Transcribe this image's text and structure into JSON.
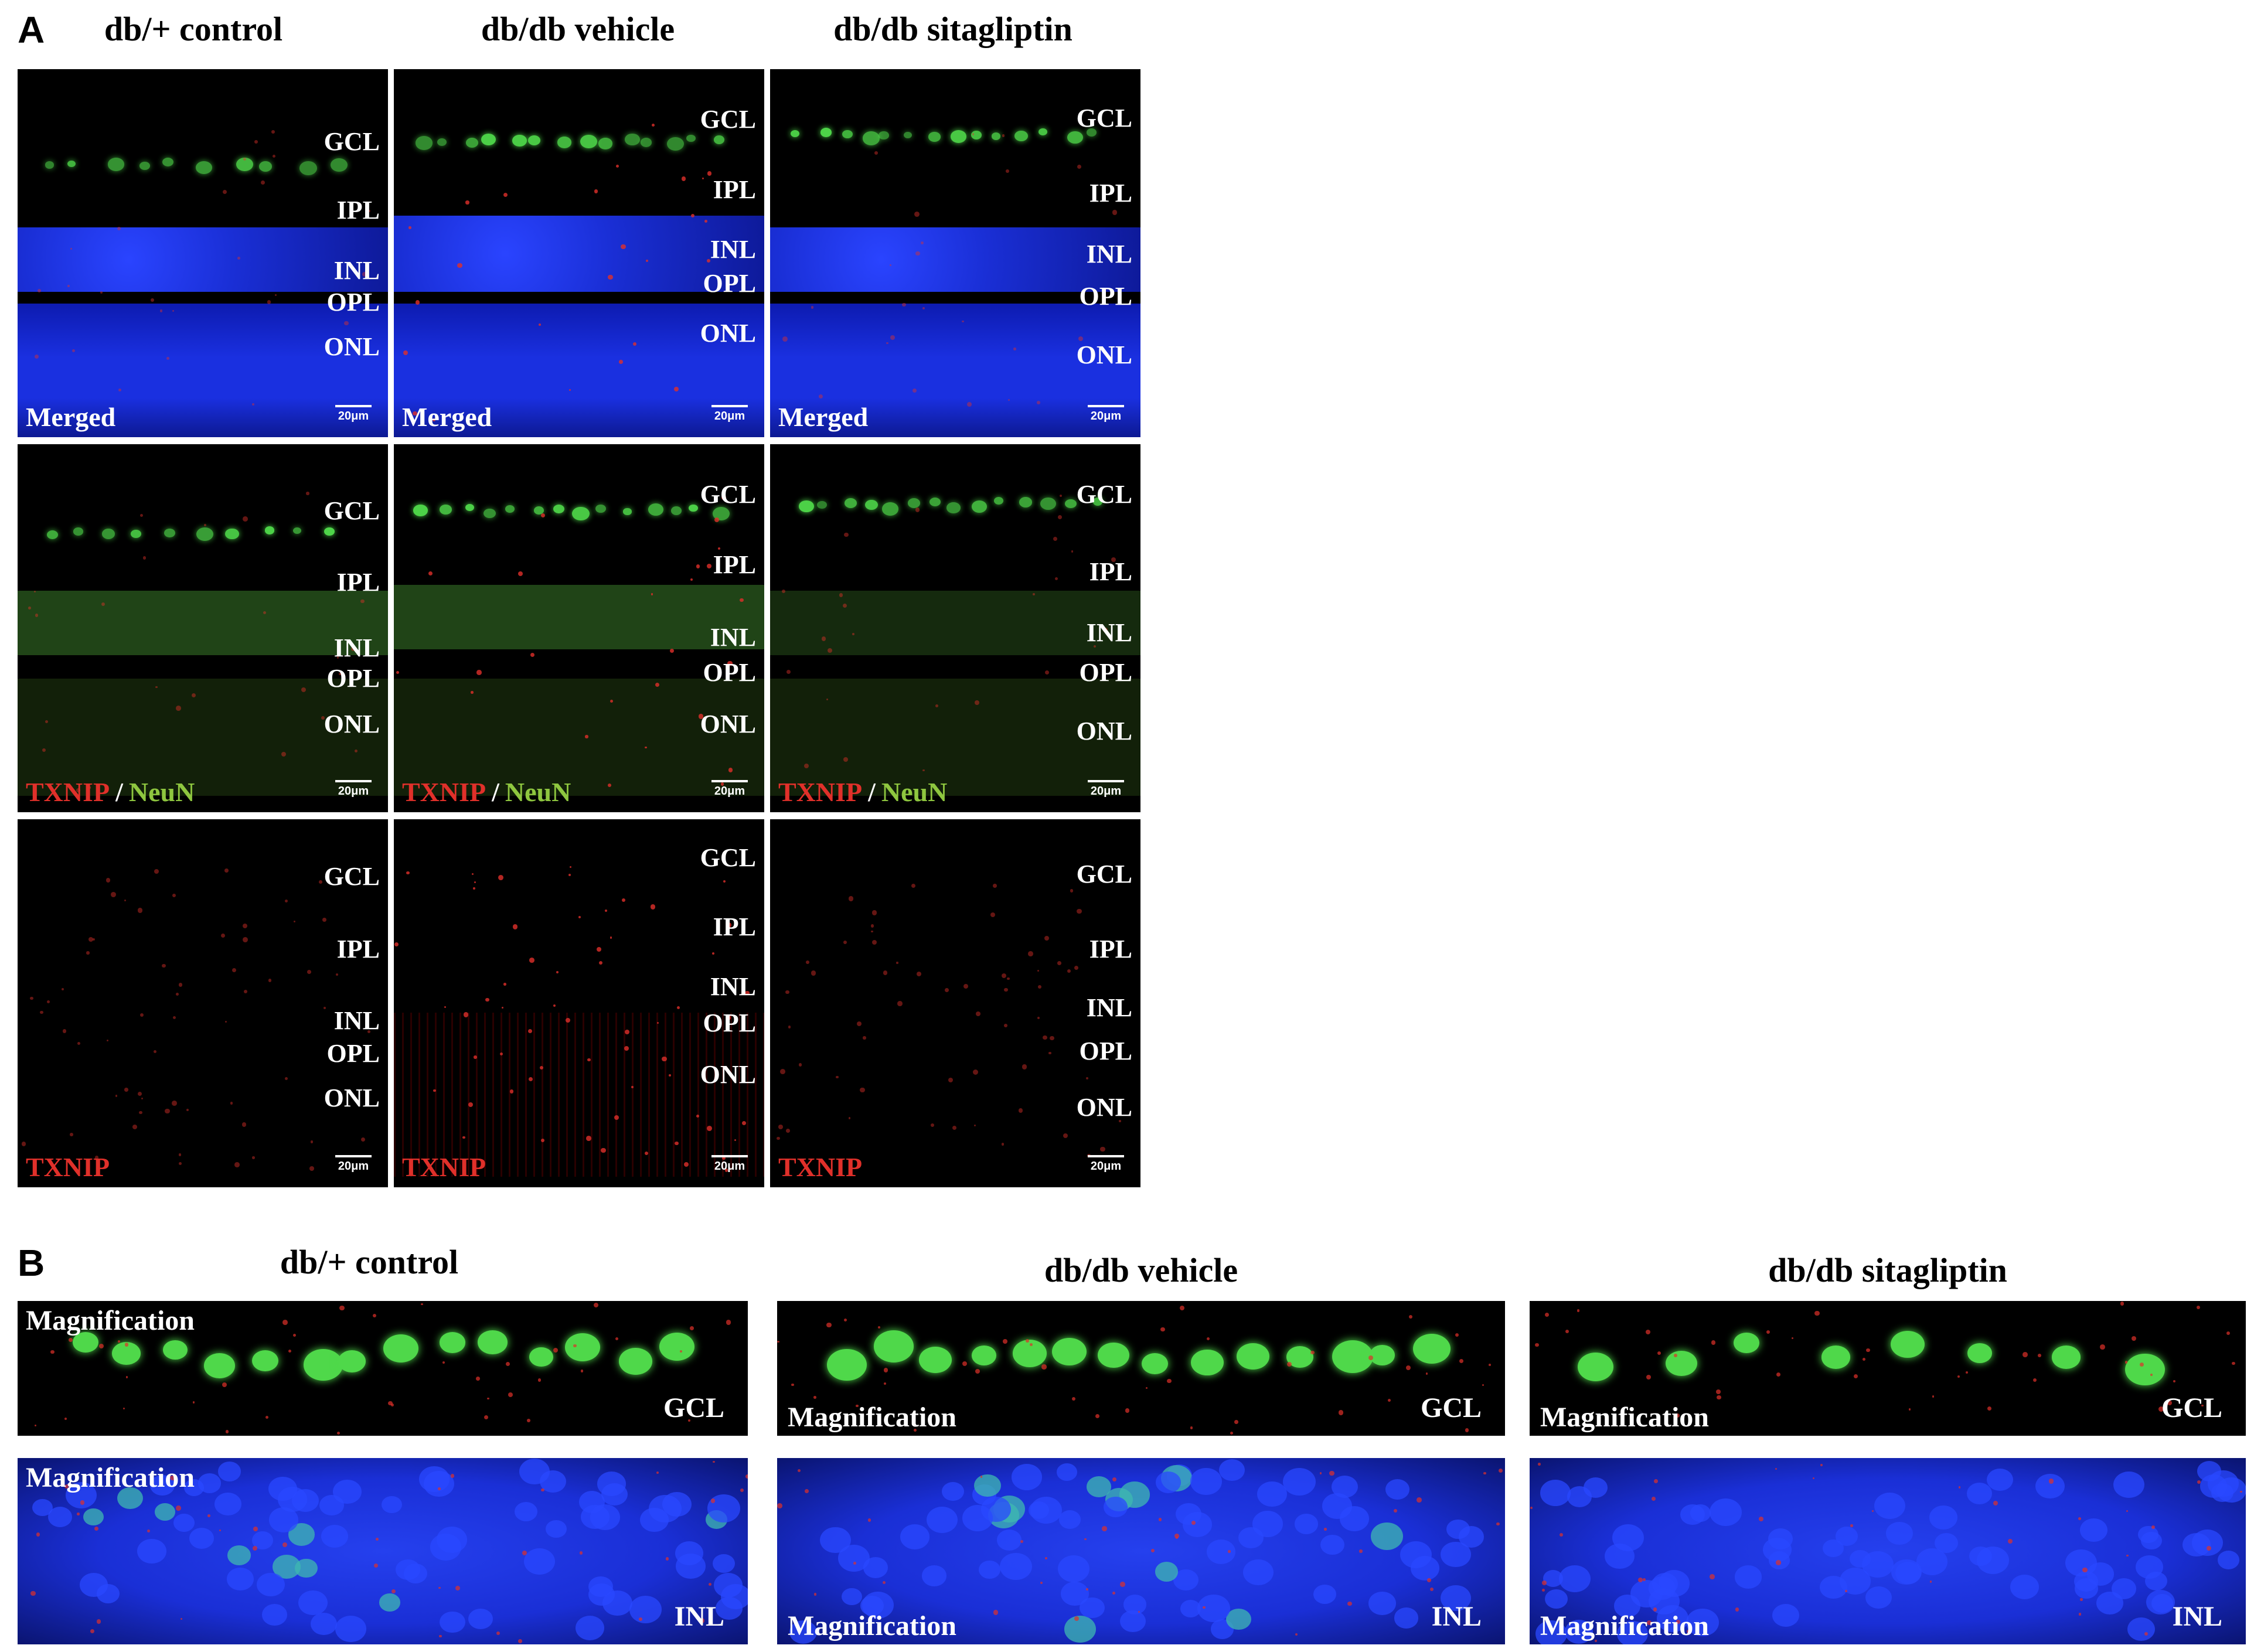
{
  "panel_a": {
    "letter": "A",
    "columns": [
      "db/+ control",
      "db/db vehicle",
      "db/db sitagliptin"
    ],
    "layers": [
      "GCL",
      "IPL",
      "INL",
      "OPL",
      "ONL"
    ],
    "rows": [
      {
        "label_parts": [
          "Merged"
        ]
      },
      {
        "label_parts": [
          "TXNIP",
          "/",
          "NeuN"
        ]
      },
      {
        "label_parts": [
          "TXNIP"
        ]
      }
    ],
    "scale": "20μm"
  },
  "panel_b": {
    "letter": "B",
    "columns": [
      "db/+ control",
      "db/db vehicle",
      "db/db sitagliptin"
    ],
    "magnification_label": "Magnification",
    "rows": [
      "GCL",
      "INL"
    ]
  },
  "colors": {
    "dapi_blue": "#1a2fd6",
    "neun_green": "#4fd84a",
    "txnip_red": "#e0302a",
    "label_green": "#8ec63f"
  }
}
